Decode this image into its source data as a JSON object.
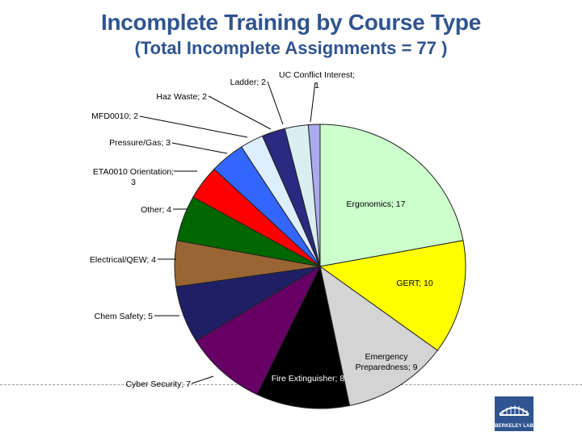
{
  "title": "Incomplete Training by Course Type",
  "subtitle": "(Total Incomplete Assignments = 77 )",
  "logo_text": "BERKELEY LAB",
  "chart_data": {
    "type": "pie",
    "total": 77,
    "start_angle_deg": 0,
    "direction": "clockwise",
    "slices": [
      {
        "name": "Ergonomics",
        "value": 17,
        "color": "#ccffcc",
        "label_lines": [
          "Ergonomics; 17"
        ]
      },
      {
        "name": "GERT",
        "value": 10,
        "color": "#ffff00",
        "label_lines": [
          "GERT; 10"
        ]
      },
      {
        "name": "Emergency Preparedness",
        "value": 9,
        "color": "#d4d4d4",
        "label_lines": [
          "Emergency",
          "Preparedness; 9"
        ]
      },
      {
        "name": "Fire Extinguisher",
        "value": 8,
        "color": "#000000",
        "label_lines": [
          "Fire Extinguisher; 8"
        ]
      },
      {
        "name": "Cyber Security",
        "value": 7,
        "color": "#660066",
        "label_lines": [
          "Cyber Security; 7"
        ]
      },
      {
        "name": "Chem Safety",
        "value": 5,
        "color": "#1f1f66",
        "label_lines": [
          "Chem Safety; 5"
        ]
      },
      {
        "name": "Electrical/QEW",
        "value": 4,
        "color": "#996633",
        "label_lines": [
          "Electrical/QEW; 4"
        ]
      },
      {
        "name": "Other",
        "value": 4,
        "color": "#006600",
        "label_lines": [
          "Other; 4"
        ]
      },
      {
        "name": "ETA0010 Orientation",
        "value": 3,
        "color": "#ff0000",
        "label_lines": [
          "ETA0010 Orientation;",
          "3"
        ]
      },
      {
        "name": "Pressure/Gas",
        "value": 3,
        "color": "#3366ff",
        "label_lines": [
          "Pressure/Gas; 3"
        ]
      },
      {
        "name": "MFD0010",
        "value": 2,
        "color": "#ddeeff",
        "label_lines": [
          "MFD0010; 2"
        ]
      },
      {
        "name": "Haz Waste",
        "value": 2,
        "color": "#2a2a80",
        "label_lines": [
          "Haz Waste; 2"
        ]
      },
      {
        "name": "Ladder",
        "value": 2,
        "color": "#d9eef0",
        "label_lines": [
          "Ladder; 2"
        ]
      },
      {
        "name": "UC Conflict Interest",
        "value": 1,
        "color": "#aaaaee",
        "label_lines": [
          "UC Conflict Interest;",
          "1"
        ]
      }
    ]
  }
}
